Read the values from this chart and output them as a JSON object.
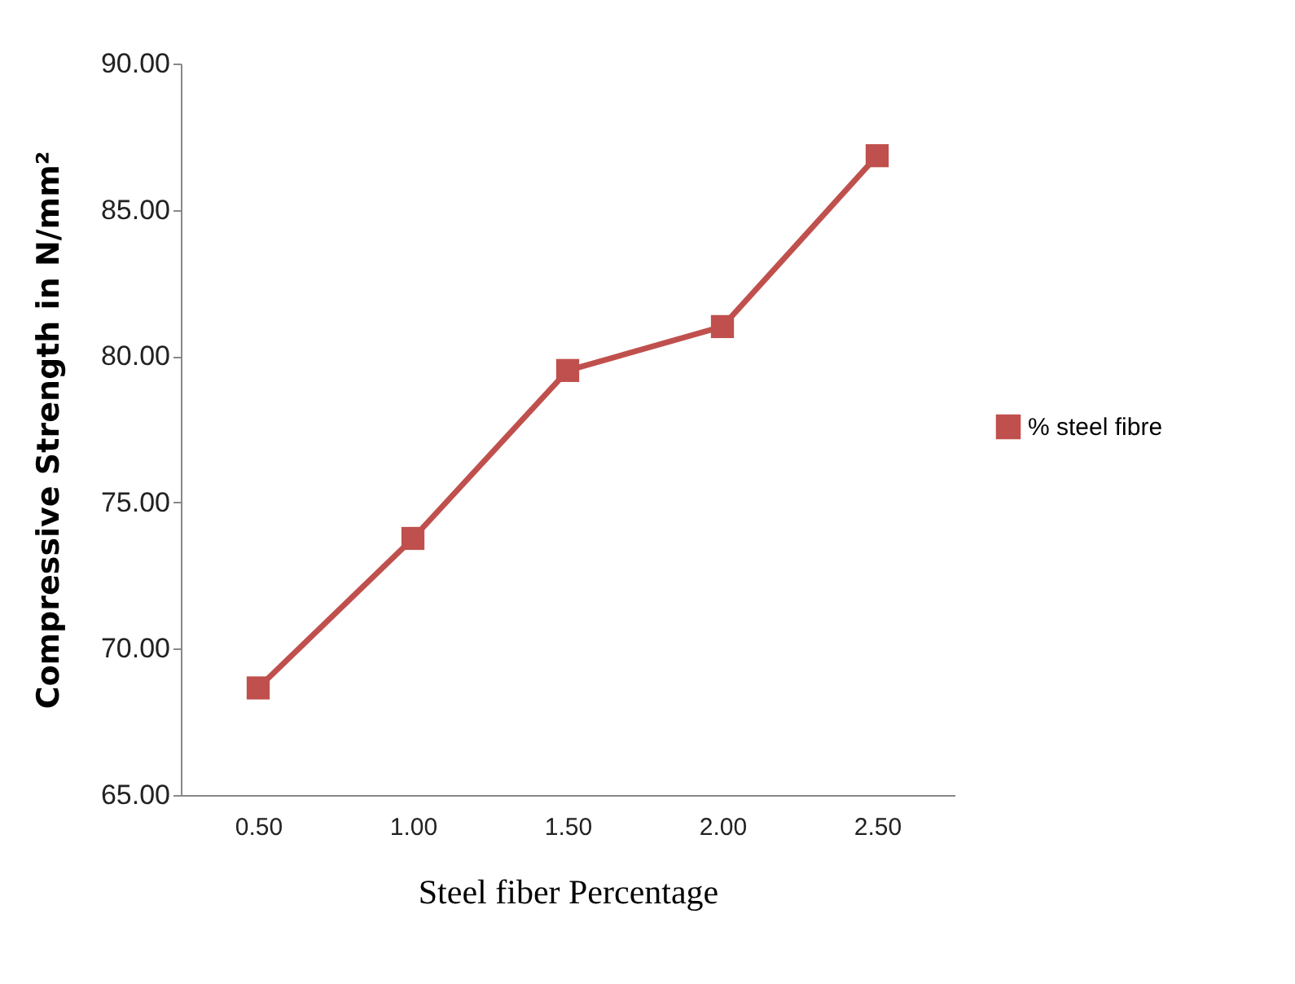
{
  "chart_data": {
    "type": "line",
    "xlabel": "Steel fiber Percentage",
    "ylabel": "Compressive Strength in N/mm²",
    "categories": [
      "0.50",
      "1.00",
      "1.50",
      "2.00",
      "2.50"
    ],
    "series": [
      {
        "name": "% steel fibre",
        "color": "#c0504d",
        "values": [
          68.66,
          73.77,
          79.51,
          81.01,
          86.85
        ]
      }
    ],
    "ylim": [
      65,
      90
    ],
    "yticks": [
      {
        "value": 65,
        "label": "65.00"
      },
      {
        "value": 70,
        "label": "70.00"
      },
      {
        "value": 75,
        "label": "75.00"
      },
      {
        "value": 80,
        "label": "80.00"
      },
      {
        "value": 85,
        "label": "85.00"
      },
      {
        "value": 90,
        "label": "90.00"
      }
    ],
    "grid": false,
    "legend": "right",
    "marker": "square",
    "line_style": "solid"
  }
}
